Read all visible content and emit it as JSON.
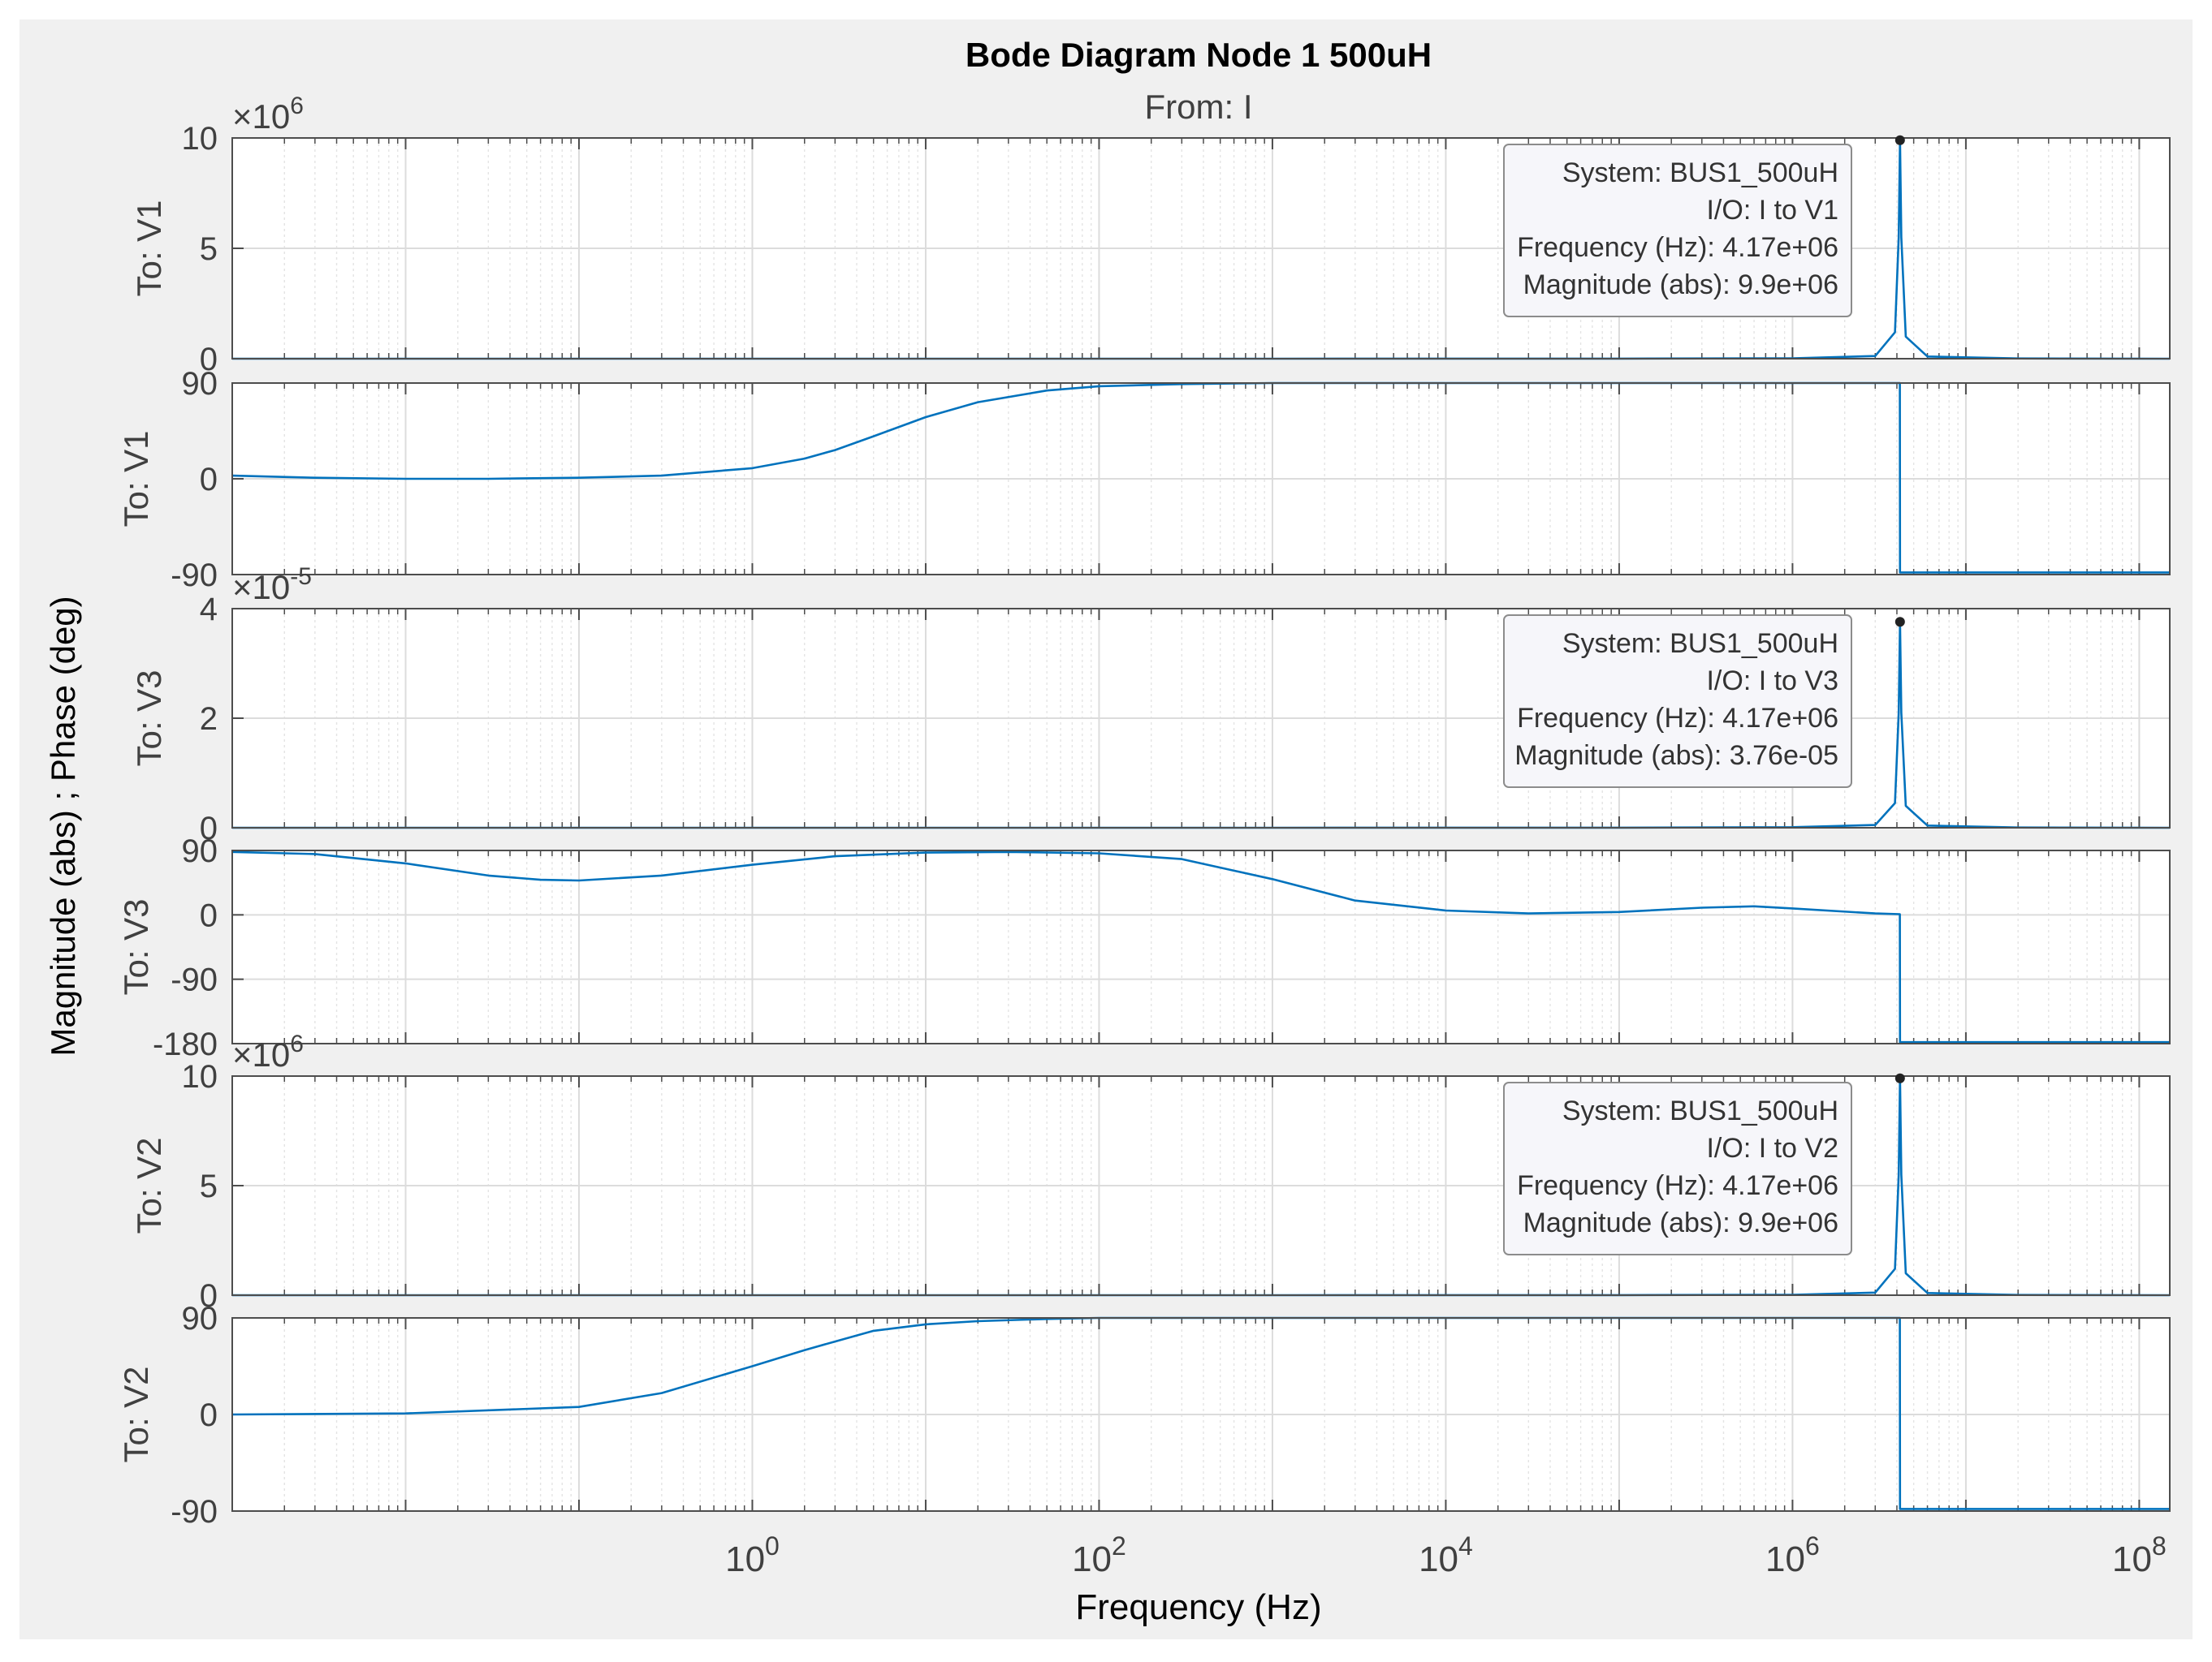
{
  "figure": {
    "title": "Bode Diagram Node 1 500uH",
    "subtitle": "From: I",
    "ylabel": "Magnitude (abs) ; Phase (deg)",
    "xlabel": "Frequency  (Hz)"
  },
  "chart_data": {
    "type": "line",
    "title": "Bode Diagram Node 1 500uH",
    "subtitle": "From: I",
    "xlabel": "Frequency  (Hz)",
    "ylabel": "Magnitude (abs) ; Phase (deg)",
    "x_scale": "log",
    "xlim": [
      0.001,
      150000000
    ],
    "x_ticks": [
      {
        "base": "10",
        "exp": "0",
        "value": 1
      },
      {
        "base": "10",
        "exp": "2",
        "value": 100
      },
      {
        "base": "10",
        "exp": "4",
        "value": 10000
      },
      {
        "base": "10",
        "exp": "6",
        "value": 1000000
      },
      {
        "base": "10",
        "exp": "8",
        "value": 100000000
      }
    ],
    "grid": true,
    "colors": {
      "line": "#0072BD",
      "axes": "#4d4d4d",
      "grid": "#dcdcdc",
      "background": "#f0f0f0"
    },
    "panels": [
      {
        "id": "mag-v1",
        "kind": "magnitude",
        "label": "To: V1",
        "exponent": {
          "base": "×10",
          "exp": "6"
        },
        "ylim": [
          0,
          10
        ],
        "yticks": [
          "0",
          "5",
          "10"
        ],
        "series": [
          {
            "x": [
              0.001,
              1,
              1000,
              100000,
              1000000,
              3000000,
              3900000,
              4100000,
              4170000,
              4240000,
              4500000,
              6000000,
              20000000,
              150000000
            ],
            "y": [
              0,
              0,
              0,
              0.002,
              0.02,
              0.12,
              1.2,
              5.5,
              9.9,
              5.5,
              1.0,
              0.1,
              0.01,
              0
            ]
          }
        ],
        "datatip": {
          "x": 4170000,
          "y": 9.9,
          "lines": [
            "System: BUS1_500uH",
            "I/O: I to V1",
            "Frequency (Hz): 4.17e+06",
            "Magnitude (abs): 9.9e+06"
          ]
        }
      },
      {
        "id": "phase-v1",
        "kind": "phase",
        "label": "To: V1",
        "ylim": [
          -90,
          90
        ],
        "yticks": [
          "-90",
          "0",
          "90"
        ],
        "series": [
          {
            "x": [
              0.001,
              0.003,
              0.01,
              0.03,
              0.1,
              0.3,
              1,
              2,
              3,
              5,
              10,
              20,
              50,
              100,
              300,
              1000,
              100000,
              4160000,
              4170000,
              150000000
            ],
            "y": [
              3,
              1,
              0,
              0,
              1,
              3,
              10,
              19,
              27,
              40,
              58,
              72,
              83,
              87,
              89,
              90,
              90,
              90,
              -88,
              -88
            ]
          }
        ]
      },
      {
        "id": "mag-v3",
        "kind": "magnitude",
        "label": "To: V3",
        "exponent": {
          "base": "×10",
          "exp": "-5"
        },
        "ylim": [
          0,
          4
        ],
        "yticks": [
          "0",
          "2",
          "4"
        ],
        "series": [
          {
            "x": [
              0.001,
              1,
              1000,
              100000,
              1000000,
              3000000,
              3900000,
              4100000,
              4170000,
              4240000,
              4500000,
              6000000,
              20000000,
              150000000
            ],
            "y": [
              0,
              0,
              0,
              0.001,
              0.01,
              0.05,
              0.45,
              2.1,
              3.76,
              2.1,
              0.4,
              0.04,
              0.005,
              0
            ]
          }
        ],
        "datatip": {
          "x": 4170000,
          "y": 3.76,
          "lines": [
            "System: BUS1_500uH",
            "I/O: I to V3",
            "Frequency (Hz): 4.17e+06",
            "Magnitude (abs): 3.76e-05"
          ]
        }
      },
      {
        "id": "phase-v3",
        "kind": "phase",
        "label": "To: V3",
        "ylim": [
          -180,
          90
        ],
        "yticks": [
          "-180",
          "-90",
          "0",
          "90"
        ],
        "series": [
          {
            "x": [
              0.001,
              0.003,
              0.01,
              0.03,
              0.06,
              0.1,
              0.3,
              1,
              3,
              10,
              30,
              100,
              300,
              1000,
              3000,
              10000,
              30000,
              100000,
              300000,
              600000,
              1000000,
              3000000,
              4160000,
              4170000,
              150000000
            ],
            "y": [
              88,
              85,
              72,
              55,
              49,
              48,
              55,
              70,
              82,
              87,
              88,
              86,
              78,
              50,
              20,
              6,
              2,
              4,
              10,
              12,
              9,
              2,
              1,
              -178,
              -178
            ]
          }
        ]
      },
      {
        "id": "mag-v2",
        "kind": "magnitude",
        "label": "To: V2",
        "exponent": {
          "base": "×10",
          "exp": "6"
        },
        "ylim": [
          0,
          10
        ],
        "yticks": [
          "0",
          "5",
          "10"
        ],
        "series": [
          {
            "x": [
              0.001,
              1,
              1000,
              100000,
              1000000,
              3000000,
              3900000,
              4100000,
              4170000,
              4240000,
              4500000,
              6000000,
              20000000,
              150000000
            ],
            "y": [
              0,
              0,
              0,
              0.002,
              0.02,
              0.12,
              1.2,
              5.5,
              9.9,
              5.5,
              1.0,
              0.1,
              0.01,
              0
            ]
          }
        ],
        "datatip": {
          "x": 4170000,
          "y": 9.9,
          "lines": [
            "System: BUS1_500uH",
            "I/O: I to V2",
            "Frequency (Hz): 4.17e+06",
            "Magnitude (abs): 9.9e+06"
          ]
        }
      },
      {
        "id": "phase-v2",
        "kind": "phase",
        "label": "To: V2",
        "ylim": [
          -90,
          90
        ],
        "yticks": [
          "-90",
          "0",
          "90"
        ],
        "series": [
          {
            "x": [
              0.001,
              0.01,
              0.1,
              0.3,
              1,
              2,
              3,
              5,
              10,
              20,
              50,
              100,
              300,
              1000,
              100000,
              4160000,
              4170000,
              150000000
            ],
            "y": [
              0,
              1,
              7,
              20,
              45,
              60,
              68,
              78,
              84,
              87,
              89,
              90,
              90,
              90,
              90,
              90,
              -88,
              -88
            ]
          }
        ]
      }
    ]
  }
}
